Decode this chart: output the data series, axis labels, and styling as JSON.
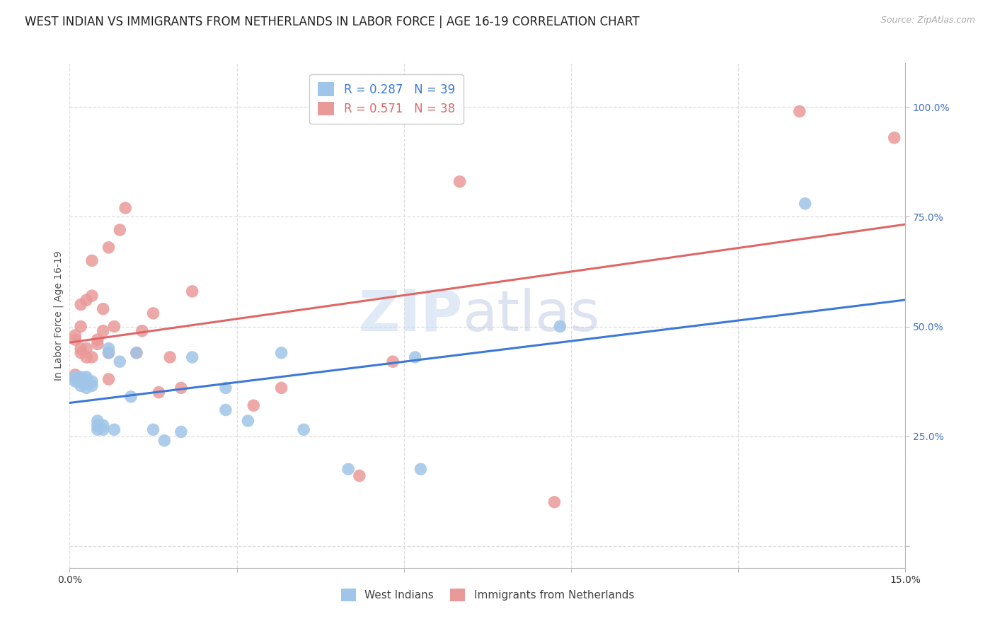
{
  "title": "WEST INDIAN VS IMMIGRANTS FROM NETHERLANDS IN LABOR FORCE | AGE 16-19 CORRELATION CHART",
  "source": "Source: ZipAtlas.com",
  "ylabel": "In Labor Force | Age 16-19",
  "xlim": [
    0.0,
    0.15
  ],
  "ylim": [
    -0.05,
    1.1
  ],
  "blue_color": "#9fc5e8",
  "pink_color": "#ea9999",
  "blue_line_color": "#3c78d8",
  "pink_line_color": "#e06666",
  "legend_r_blue": "0.287",
  "legend_n_blue": "39",
  "legend_r_pink": "0.571",
  "legend_n_pink": "38",
  "legend_label_blue": "West Indians",
  "legend_label_pink": "Immigrants from Netherlands",
  "watermark": "ZIPatlas",
  "blue_x": [
    0.001,
    0.001,
    0.001,
    0.002,
    0.002,
    0.002,
    0.002,
    0.003,
    0.003,
    0.003,
    0.003,
    0.003,
    0.004,
    0.004,
    0.005,
    0.005,
    0.005,
    0.006,
    0.006,
    0.007,
    0.007,
    0.008,
    0.009,
    0.011,
    0.012,
    0.015,
    0.017,
    0.02,
    0.022,
    0.028,
    0.028,
    0.032,
    0.038,
    0.042,
    0.05,
    0.062,
    0.063,
    0.088,
    0.132
  ],
  "blue_y": [
    0.375,
    0.38,
    0.385,
    0.365,
    0.375,
    0.38,
    0.385,
    0.36,
    0.37,
    0.375,
    0.38,
    0.385,
    0.365,
    0.375,
    0.265,
    0.275,
    0.285,
    0.265,
    0.275,
    0.44,
    0.45,
    0.265,
    0.42,
    0.34,
    0.44,
    0.265,
    0.24,
    0.26,
    0.43,
    0.31,
    0.36,
    0.285,
    0.44,
    0.265,
    0.175,
    0.43,
    0.175,
    0.5,
    0.78
  ],
  "pink_x": [
    0.001,
    0.001,
    0.001,
    0.002,
    0.002,
    0.002,
    0.002,
    0.003,
    0.003,
    0.003,
    0.004,
    0.004,
    0.004,
    0.005,
    0.005,
    0.006,
    0.006,
    0.007,
    0.007,
    0.007,
    0.008,
    0.009,
    0.01,
    0.012,
    0.013,
    0.015,
    0.016,
    0.018,
    0.02,
    0.022,
    0.033,
    0.038,
    0.052,
    0.058,
    0.07,
    0.087,
    0.131,
    0.148
  ],
  "pink_y": [
    0.39,
    0.47,
    0.48,
    0.44,
    0.45,
    0.5,
    0.55,
    0.43,
    0.45,
    0.56,
    0.43,
    0.57,
    0.65,
    0.46,
    0.47,
    0.49,
    0.54,
    0.38,
    0.44,
    0.68,
    0.5,
    0.72,
    0.77,
    0.44,
    0.49,
    0.53,
    0.35,
    0.43,
    0.36,
    0.58,
    0.32,
    0.36,
    0.16,
    0.42,
    0.83,
    0.1,
    0.99,
    0.93
  ],
  "background_color": "#ffffff",
  "grid_color": "#dddddd",
  "title_fontsize": 12,
  "tick_fontsize": 10,
  "tick_color": "#4472c4",
  "title_color": "#222222",
  "ytick_positions": [
    0.0,
    0.25,
    0.5,
    0.75,
    1.0
  ],
  "ytick_labels": [
    "",
    "25.0%",
    "50.0%",
    "75.0%",
    "100.0%"
  ],
  "xtick_positions": [
    0.0,
    0.03,
    0.06,
    0.09,
    0.12,
    0.15
  ],
  "xtick_labels": [
    "0.0%",
    "",
    "",
    "",
    "",
    "15.0%"
  ]
}
